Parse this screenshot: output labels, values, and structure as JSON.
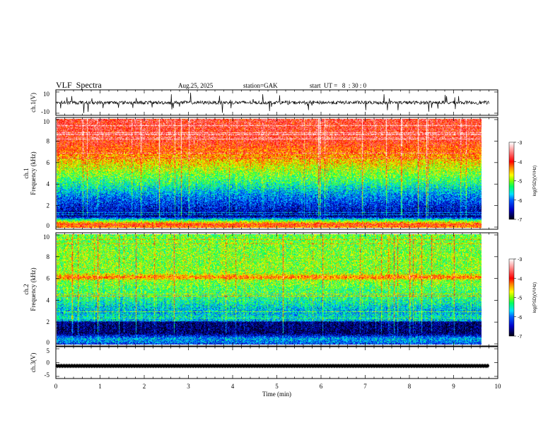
{
  "header": {
    "title": "VLF  Spectra",
    "date": "Aug.25, 2025",
    "station": "station=GAK",
    "start": "start  UT =   8  : 30 : 0"
  },
  "chart_data": [
    {
      "type": "line",
      "name": "ch1-waveform",
      "ylabel": "ch.1(V)",
      "ylim": [
        -10,
        10
      ],
      "ytick_labels": [
        "10",
        "-10"
      ],
      "xlim": [
        0,
        10
      ],
      "data_end_min": 9.8,
      "baseline": 0,
      "noise_amplitude": 2,
      "spike_amplitude": 9
    },
    {
      "type": "heatmap",
      "name": "ch1-spectrogram",
      "ylabel": "ch.1\nFrequency (kHz)",
      "ylim": [
        0,
        10
      ],
      "ytick_labels": [
        "0",
        "2",
        "4",
        "6",
        "8",
        "10"
      ],
      "xlim": [
        0,
        10
      ],
      "mean_log_psd_profile": {
        "freq_khz": [
          0,
          0.3,
          0.6,
          1,
          2,
          3,
          4,
          5,
          6,
          7,
          8,
          10
        ],
        "log_psd": [
          -4.3,
          -4.0,
          -5.0,
          -6.6,
          -6.3,
          -5.9,
          -5.4,
          -5.0,
          -4.6,
          -4.2,
          -3.9,
          -3.8
        ]
      },
      "colorbar": {
        "label": "log(PSD)(V²/Hz)",
        "range": [
          -7,
          -3
        ],
        "tick_labels": [
          "-3",
          "-4",
          "-5",
          "-6",
          "-7"
        ]
      }
    },
    {
      "type": "heatmap",
      "name": "ch2-spectrogram",
      "ylabel": "ch.2\nFrequency (kHz)",
      "ylim": [
        0,
        10
      ],
      "ytick_labels": [
        "0",
        "2",
        "4",
        "6",
        "8",
        "10"
      ],
      "xlim": [
        0,
        10
      ],
      "mean_log_psd_profile": {
        "freq_khz": [
          0,
          0.5,
          1,
          2,
          2.3,
          3,
          4,
          5,
          5.8,
          6.1,
          6.5,
          8,
          10
        ],
        "log_psd": [
          -6.2,
          -5.8,
          -6.8,
          -6.7,
          -5.5,
          -5.8,
          -5.4,
          -5.2,
          -5.0,
          -4.2,
          -5.0,
          -5.0,
          -5.1
        ]
      },
      "colorbar": {
        "label": "log(PSD)(V²/Hz)",
        "range": [
          -7,
          -3
        ],
        "tick_labels": [
          "-3",
          "-4",
          "-5",
          "-6",
          "-7"
        ]
      }
    },
    {
      "type": "line",
      "name": "ch3-waveform",
      "ylabel": "ch.3(V)",
      "ylim": [
        -5,
        5
      ],
      "ytick_labels": [
        "5",
        "0",
        "-5"
      ],
      "xlim": [
        0,
        10
      ],
      "data_end_min": 9.8,
      "baseline": -1.2
    }
  ],
  "xaxis": {
    "label": "Time  (min)",
    "tick_labels": [
      "0",
      "1",
      "2",
      "3",
      "4",
      "5",
      "6",
      "7",
      "8",
      "9",
      "10"
    ]
  },
  "colors": {
    "waveform": "#000000",
    "axis": "#000000"
  }
}
